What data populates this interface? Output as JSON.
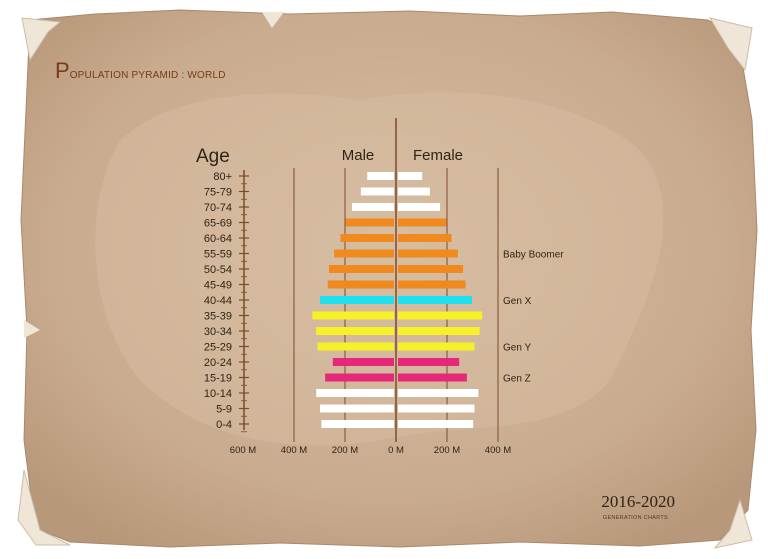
{
  "header": {
    "title_initial": "P",
    "title_rest": "OPULATION PYRAMID : WORLD"
  },
  "footer": {
    "years": "2016-2020",
    "caption": "GENERATION CHARTS"
  },
  "colors": {
    "paper": "#c9ab8f",
    "paper_light": "#d8bea3",
    "paper_curl": "#efe6d8",
    "axis": "#7e4a2c",
    "text": "#2f2415",
    "white_bar": "#ffffff",
    "baby_boomer": "#f08a1e",
    "gen_x": "#1ee0ee",
    "gen_y": "#f7f227",
    "gen_z": "#e6287a"
  },
  "chart_data": {
    "type": "bar",
    "orientation": "horizontal-diverging",
    "age_axis_title": "Age",
    "left_header": "Male",
    "right_header": "Female",
    "categories": [
      "80+",
      "75-79",
      "70-74",
      "65-69",
      "60-64",
      "55-59",
      "50-54",
      "45-49",
      "40-44",
      "35-39",
      "30-34",
      "25-29",
      "20-24",
      "15-19",
      "10-14",
      "5-9",
      "0-4"
    ],
    "x_ticks": [
      "600 M",
      "400 M",
      "200 M",
      "0 M",
      "200 M",
      "400 M"
    ],
    "x_tick_values": [
      -600,
      -400,
      -200,
      0,
      200,
      400
    ],
    "xlim": [
      -600,
      400
    ],
    "units": "M",
    "series": [
      {
        "name": "Male",
        "values": [
          105,
          130,
          165,
          190,
          210,
          235,
          255,
          260,
          290,
          320,
          305,
          300,
          240,
          270,
          305,
          290,
          285
        ]
      },
      {
        "name": "Female",
        "values": [
          95,
          125,
          165,
          190,
          210,
          235,
          255,
          265,
          290,
          330,
          320,
          300,
          240,
          270,
          315,
          300,
          295
        ]
      }
    ],
    "bar_colors": [
      "white",
      "white",
      "white",
      "baby_boomer",
      "baby_boomer",
      "baby_boomer",
      "baby_boomer",
      "baby_boomer",
      "gen_x",
      "gen_y",
      "gen_y",
      "gen_y",
      "gen_z",
      "gen_z",
      "white",
      "white",
      "white"
    ],
    "annotations": [
      {
        "text": "Baby Boomer",
        "category": "55-59"
      },
      {
        "text": "Gen X",
        "category": "40-44"
      },
      {
        "text": "Gen Y",
        "category": "25-29"
      },
      {
        "text": "Gen Z",
        "category": "15-19"
      }
    ]
  }
}
